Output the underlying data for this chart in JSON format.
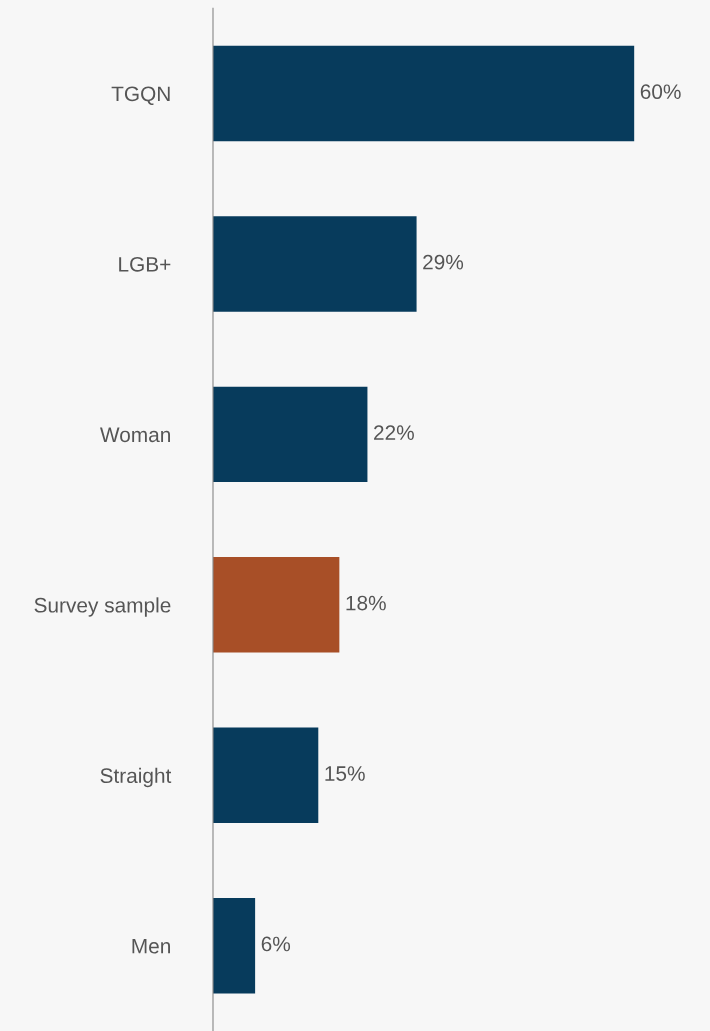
{
  "chart_data": {
    "type": "bar",
    "orientation": "horizontal",
    "categories": [
      "TGQN",
      "LGB+",
      "Woman",
      "Survey sample",
      "Straight",
      "Men"
    ],
    "values": [
      60,
      29,
      22,
      18,
      15,
      6
    ],
    "colors": [
      "#073b5c",
      "#073b5c",
      "#073b5c",
      "#a84f27",
      "#073b5c",
      "#073b5c"
    ],
    "value_labels": [
      "60%",
      "29%",
      "22%",
      "18%",
      "15%",
      "6%"
    ],
    "grid": false,
    "legend": false
  }
}
